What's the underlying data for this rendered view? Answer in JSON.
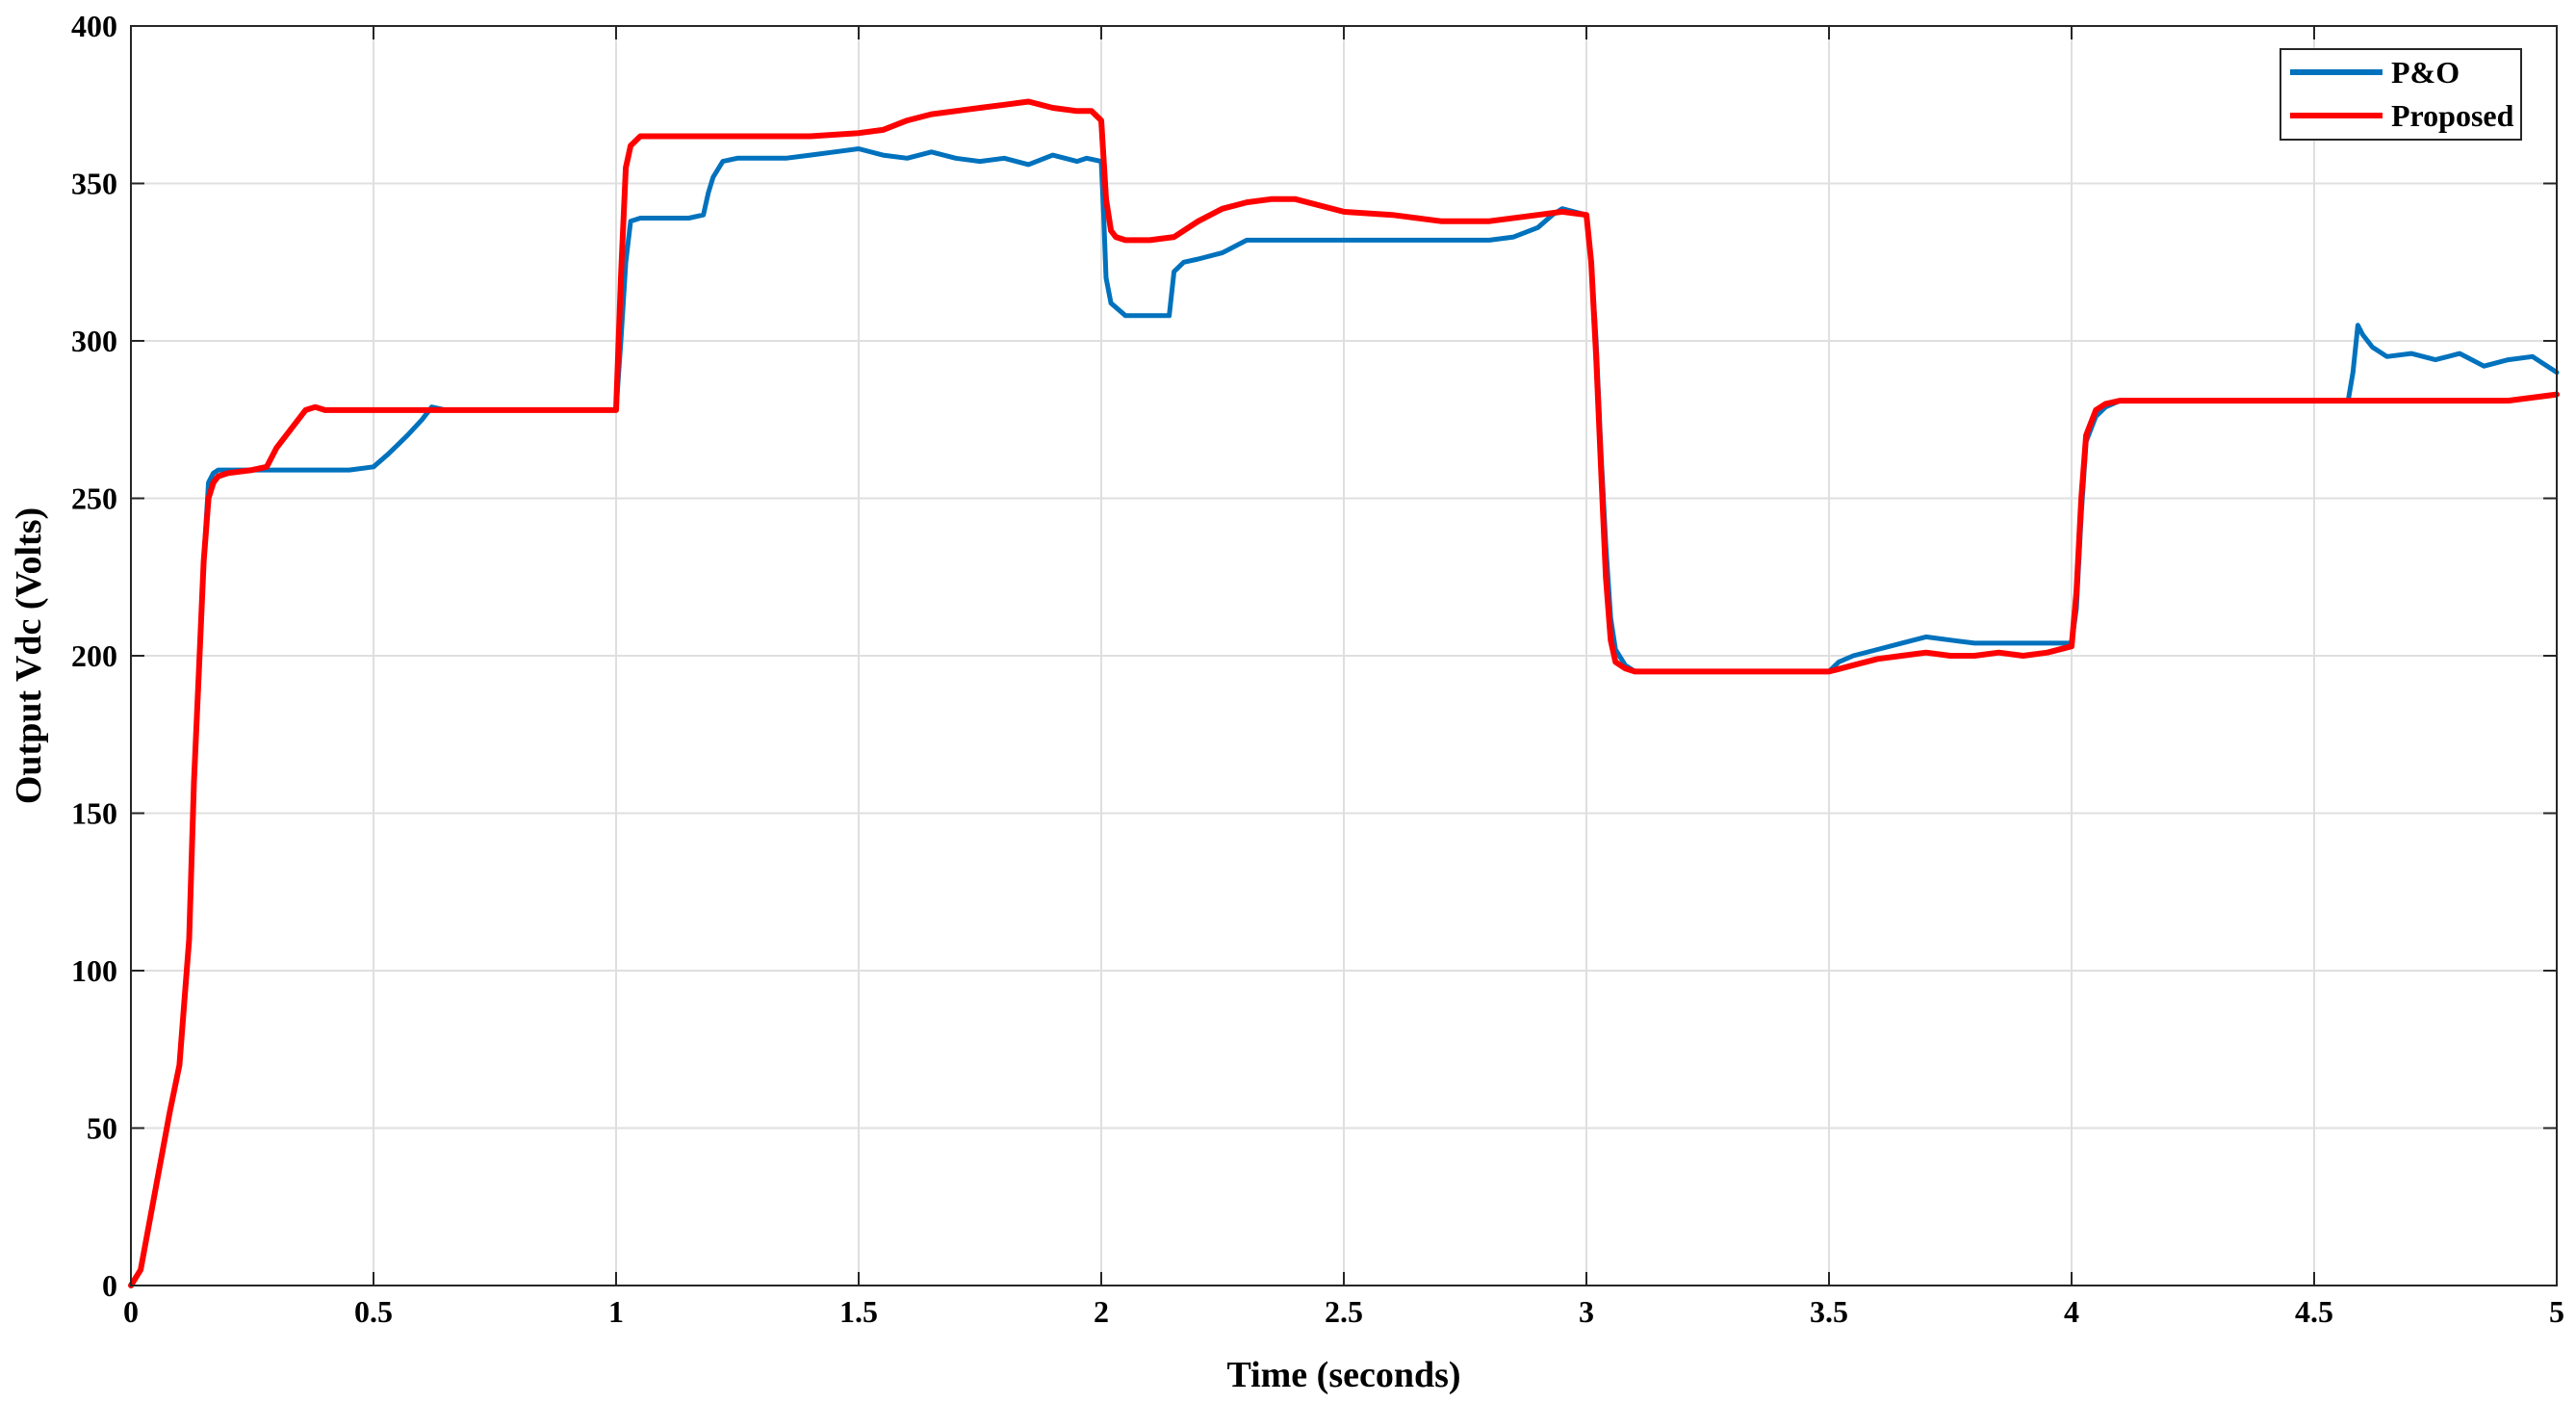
{
  "chart_data": {
    "type": "line",
    "title": "",
    "xlabel": "Time (seconds)",
    "ylabel": "Output Vdc (Volts)",
    "xlim": [
      0,
      5
    ],
    "ylim": [
      0,
      400
    ],
    "xticks": [
      0,
      0.5,
      1,
      1.5,
      2,
      2.5,
      3,
      3.5,
      4,
      4.5,
      5
    ],
    "xtick_labels": [
      "0",
      "0.5",
      "1",
      "1.5",
      "2",
      "2.5",
      "3",
      "3.5",
      "4",
      "4.5",
      "5"
    ],
    "yticks": [
      0,
      50,
      100,
      150,
      200,
      250,
      300,
      350,
      400
    ],
    "ytick_labels": [
      "0",
      "50",
      "100",
      "150",
      "200",
      "250",
      "300",
      "350",
      "400"
    ],
    "grid": true,
    "legend_position": "top-right",
    "series": [
      {
        "name": "P&O",
        "color": "#0072BD",
        "x": [
          0,
          0.02,
          0.05,
          0.08,
          0.1,
          0.12,
          0.13,
          0.14,
          0.15,
          0.16,
          0.17,
          0.18,
          0.19,
          0.2,
          0.25,
          0.3,
          0.35,
          0.4,
          0.45,
          0.5,
          0.53,
          0.55,
          0.57,
          0.6,
          0.62,
          0.65,
          0.7,
          0.8,
          0.9,
          1.0,
          1.01,
          1.02,
          1.03,
          1.05,
          1.1,
          1.15,
          1.18,
          1.19,
          1.2,
          1.22,
          1.25,
          1.3,
          1.35,
          1.4,
          1.45,
          1.5,
          1.55,
          1.6,
          1.65,
          1.7,
          1.75,
          1.8,
          1.85,
          1.9,
          1.95,
          1.97,
          2.0,
          2.005,
          2.01,
          2.02,
          2.05,
          2.1,
          2.14,
          2.15,
          2.17,
          2.2,
          2.25,
          2.3,
          2.4,
          2.5,
          2.6,
          2.7,
          2.8,
          2.85,
          2.9,
          2.93,
          2.95,
          3.0,
          3.01,
          3.02,
          3.03,
          3.04,
          3.05,
          3.06,
          3.08,
          3.1,
          3.15,
          3.2,
          3.3,
          3.4,
          3.5,
          3.52,
          3.55,
          3.6,
          3.65,
          3.7,
          3.75,
          3.8,
          3.85,
          3.9,
          3.95,
          4.0,
          4.01,
          4.02,
          4.03,
          4.05,
          4.07,
          4.1,
          4.2,
          4.3,
          4.4,
          4.5,
          4.57,
          4.58,
          4.59,
          4.6,
          4.62,
          4.65,
          4.7,
          4.75,
          4.8,
          4.85,
          4.9,
          4.95,
          5.0
        ],
        "y": [
          0,
          5,
          30,
          55,
          70,
          110,
          160,
          195,
          230,
          255,
          258,
          259,
          259,
          259,
          259,
          259,
          259,
          259,
          259,
          260,
          264,
          267,
          270,
          275,
          279,
          278,
          278,
          278,
          278,
          278,
          300,
          325,
          338,
          339,
          339,
          339,
          340,
          347,
          352,
          357,
          358,
          358,
          358,
          359,
          360,
          361,
          359,
          358,
          360,
          358,
          357,
          358,
          356,
          359,
          357,
          358,
          357,
          340,
          320,
          312,
          308,
          308,
          308,
          322,
          325,
          326,
          328,
          332,
          332,
          332,
          332,
          332,
          332,
          333,
          336,
          340,
          342,
          340,
          325,
          300,
          265,
          235,
          212,
          202,
          197,
          195,
          195,
          195,
          195,
          195,
          195,
          198,
          200,
          202,
          204,
          206,
          205,
          204,
          204,
          204,
          204,
          204,
          215,
          245,
          268,
          276,
          279,
          281,
          281,
          281,
          281,
          281,
          281,
          290,
          305,
          302,
          298,
          295,
          296,
          294,
          296,
          292,
          294,
          295,
          290
        ]
      },
      {
        "name": "Proposed",
        "color": "#FF0000",
        "x": [
          0,
          0.02,
          0.05,
          0.08,
          0.1,
          0.12,
          0.13,
          0.14,
          0.15,
          0.16,
          0.17,
          0.18,
          0.2,
          0.25,
          0.28,
          0.3,
          0.33,
          0.36,
          0.38,
          0.4,
          0.45,
          0.5,
          0.6,
          0.7,
          0.8,
          0.9,
          1.0,
          1.01,
          1.02,
          1.03,
          1.05,
          1.1,
          1.2,
          1.3,
          1.4,
          1.5,
          1.55,
          1.6,
          1.65,
          1.7,
          1.75,
          1.8,
          1.85,
          1.9,
          1.95,
          1.98,
          2.0,
          2.01,
          2.02,
          2.03,
          2.05,
          2.1,
          2.15,
          2.2,
          2.25,
          2.3,
          2.35,
          2.4,
          2.5,
          2.6,
          2.7,
          2.8,
          2.9,
          2.95,
          3.0,
          3.01,
          3.02,
          3.03,
          3.04,
          3.05,
          3.06,
          3.08,
          3.1,
          3.15,
          3.2,
          3.3,
          3.4,
          3.5,
          3.55,
          3.6,
          3.65,
          3.7,
          3.75,
          3.8,
          3.85,
          3.9,
          3.95,
          4.0,
          4.01,
          4.02,
          4.03,
          4.05,
          4.07,
          4.1,
          4.2,
          4.3,
          4.4,
          4.5,
          4.6,
          4.7,
          4.8,
          4.9,
          4.95,
          5.0
        ],
        "y": [
          0,
          5,
          30,
          55,
          70,
          110,
          160,
          195,
          230,
          250,
          255,
          257,
          258,
          259,
          260,
          266,
          272,
          278,
          279,
          278,
          278,
          278,
          278,
          278,
          278,
          278,
          278,
          320,
          355,
          362,
          365,
          365,
          365,
          365,
          365,
          366,
          367,
          370,
          372,
          373,
          374,
          375,
          376,
          374,
          373,
          373,
          370,
          345,
          335,
          333,
          332,
          332,
          333,
          338,
          342,
          344,
          345,
          345,
          341,
          340,
          338,
          338,
          340,
          341,
          340,
          325,
          295,
          260,
          225,
          205,
          198,
          196,
          195,
          195,
          195,
          195,
          195,
          195,
          197,
          199,
          200,
          201,
          200,
          200,
          201,
          200,
          201,
          203,
          220,
          250,
          270,
          278,
          280,
          281,
          281,
          281,
          281,
          281,
          281,
          281,
          281,
          281,
          282,
          283
        ]
      }
    ]
  }
}
